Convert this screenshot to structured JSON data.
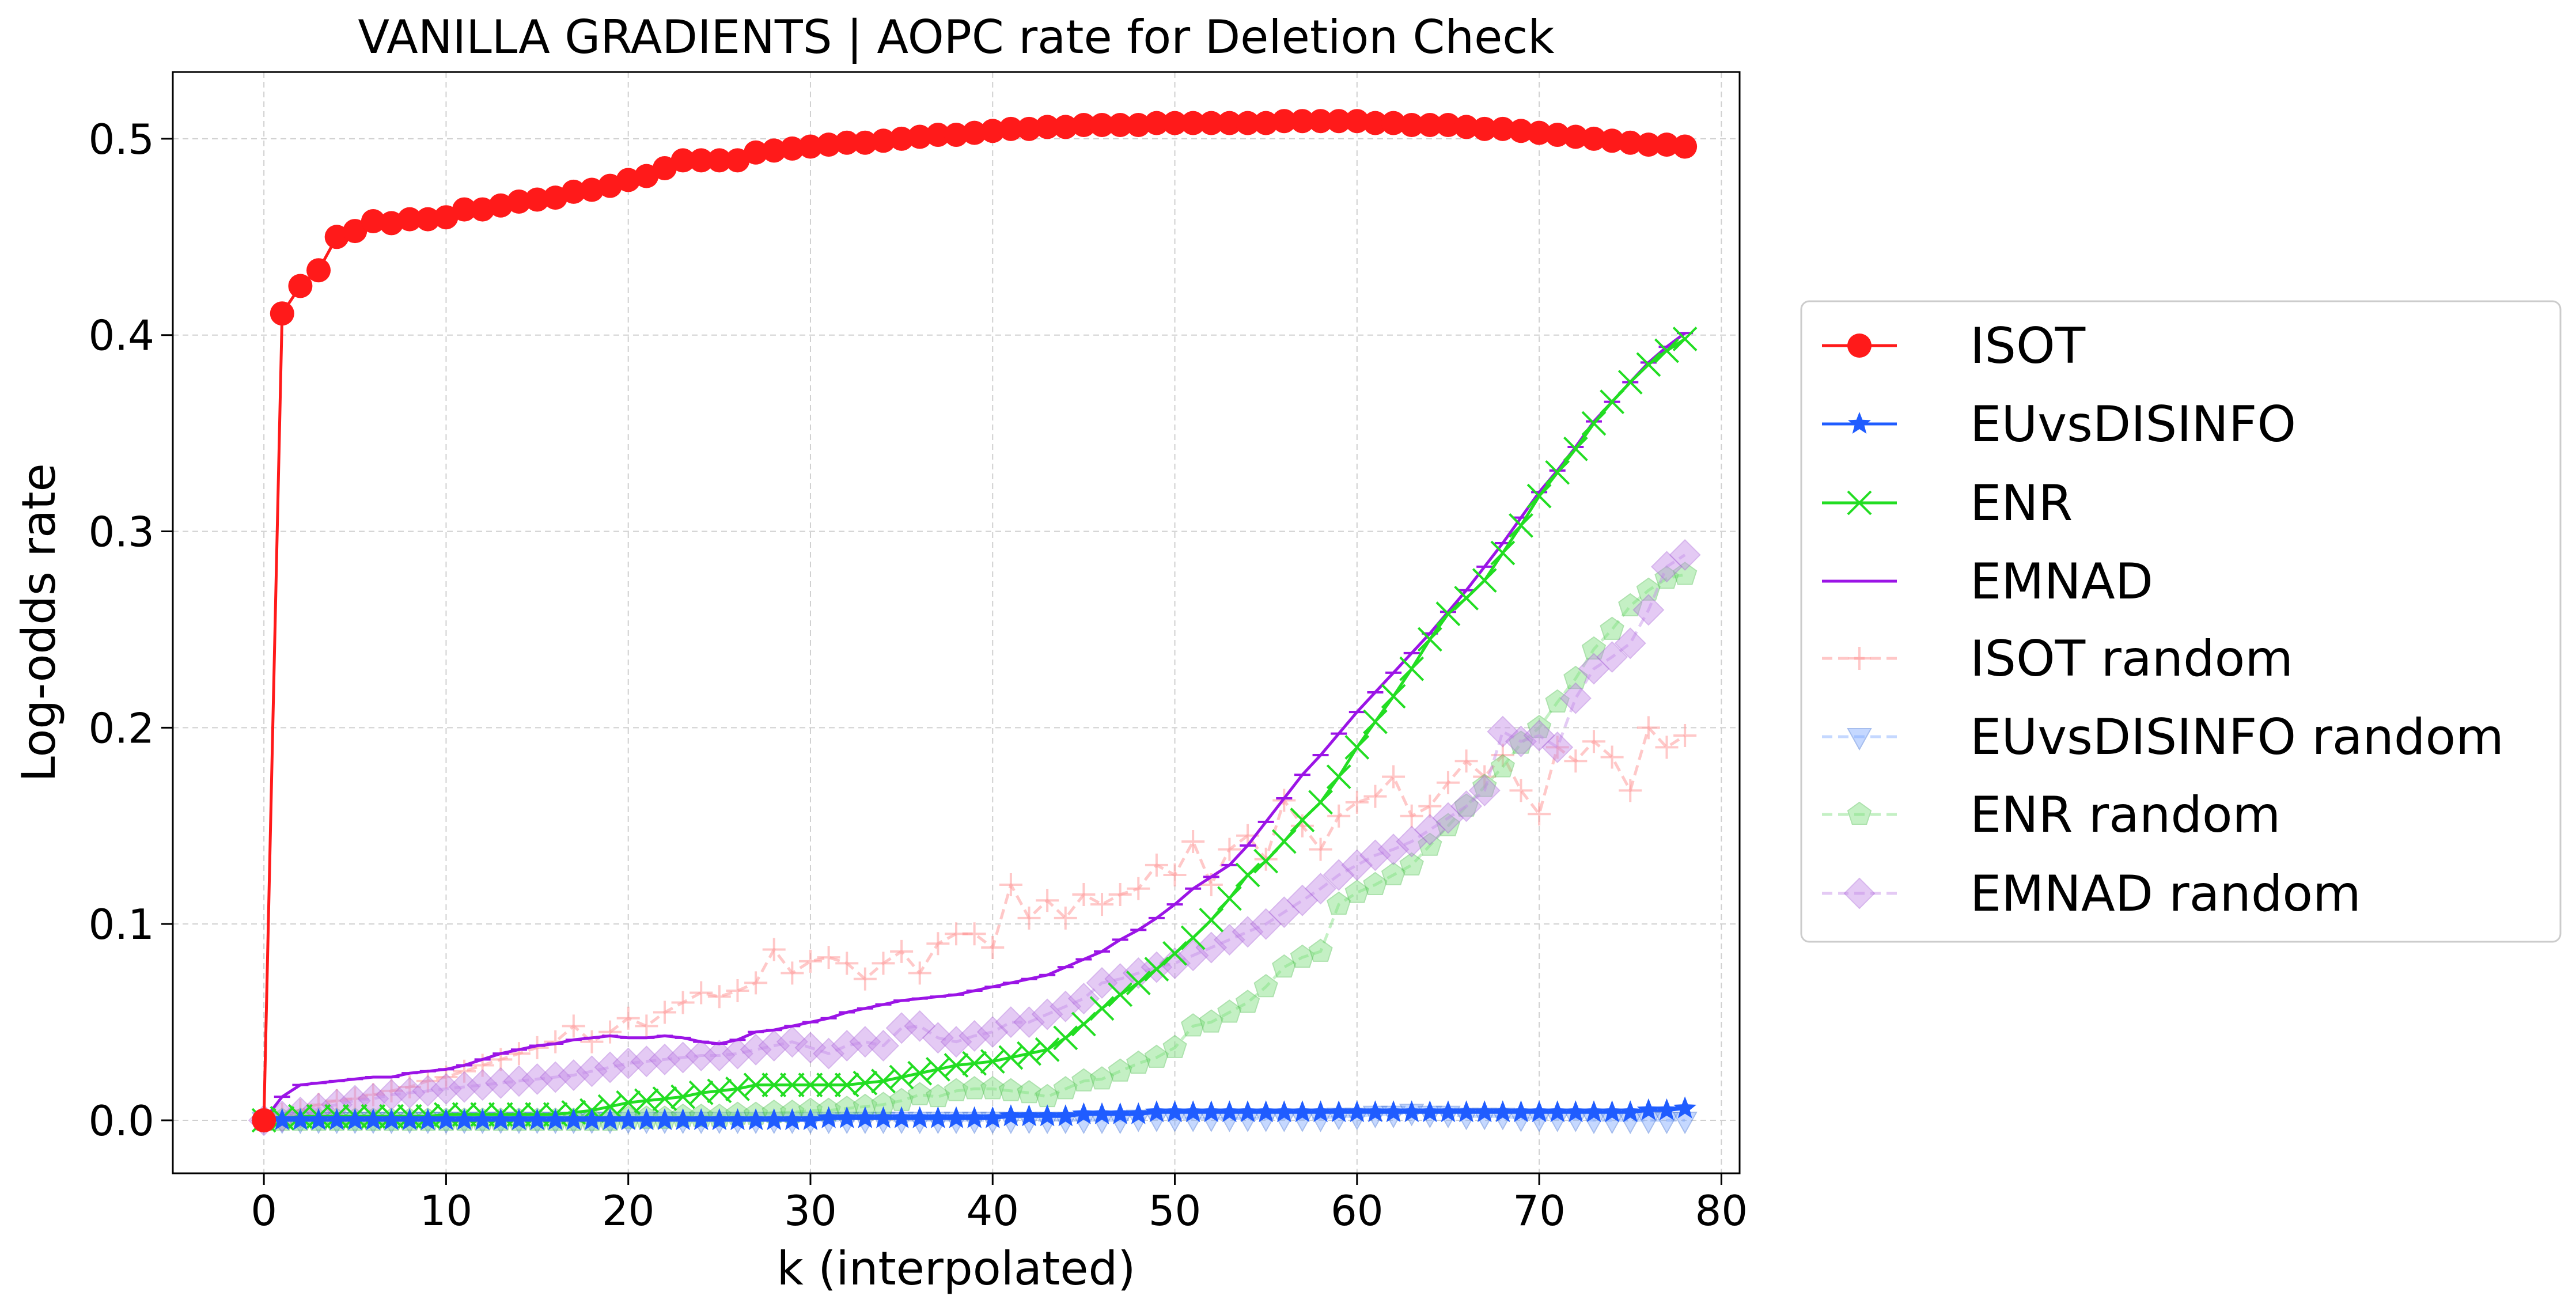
{
  "chart_data": {
    "type": "line",
    "title": "VANILLA GRADIENTS | AOPC rate for Deletion Check",
    "xlabel": "k (interpolated)",
    "ylabel": "Log-odds rate",
    "xlim": [
      -5,
      81
    ],
    "ylim": [
      -0.027,
      0.534
    ],
    "xticks": [
      "0",
      "10",
      "20",
      "30",
      "40",
      "50",
      "60",
      "70",
      "80"
    ],
    "yticks": [
      "0.0",
      "0.1",
      "0.2",
      "0.3",
      "0.4",
      "0.5"
    ],
    "grid": true,
    "legend_position": "right, outside plot",
    "x": [
      0,
      1,
      2,
      3,
      4,
      5,
      6,
      7,
      8,
      9,
      10,
      11,
      12,
      13,
      14,
      15,
      16,
      17,
      18,
      19,
      20,
      21,
      22,
      23,
      24,
      25,
      26,
      27,
      28,
      29,
      30,
      31,
      32,
      33,
      34,
      35,
      36,
      37,
      38,
      39,
      40,
      41,
      42,
      43,
      44,
      45,
      46,
      47,
      48,
      49,
      50,
      51,
      52,
      53,
      54,
      55,
      56,
      57,
      58,
      59,
      60,
      61,
      62,
      63,
      64,
      65,
      66,
      67,
      68,
      69,
      70,
      71,
      72,
      73,
      74,
      75,
      76,
      77,
      78
    ],
    "series": [
      {
        "name": "ISOT",
        "color": "#ff1a1a",
        "marker": "circle",
        "style": "solid",
        "alpha": 1.0,
        "values": [
          0.0,
          0.411,
          0.425,
          0.433,
          0.45,
          0.453,
          0.458,
          0.457,
          0.459,
          0.459,
          0.46,
          0.464,
          0.464,
          0.466,
          0.468,
          0.469,
          0.47,
          0.473,
          0.474,
          0.476,
          0.479,
          0.481,
          0.485,
          0.489,
          0.489,
          0.489,
          0.489,
          0.493,
          0.494,
          0.495,
          0.496,
          0.497,
          0.498,
          0.498,
          0.499,
          0.5,
          0.501,
          0.502,
          0.502,
          0.503,
          0.504,
          0.505,
          0.505,
          0.506,
          0.506,
          0.507,
          0.507,
          0.507,
          0.507,
          0.508,
          0.508,
          0.508,
          0.508,
          0.508,
          0.508,
          0.508,
          0.509,
          0.509,
          0.509,
          0.509,
          0.509,
          0.508,
          0.508,
          0.507,
          0.507,
          0.507,
          0.506,
          0.505,
          0.505,
          0.504,
          0.503,
          0.502,
          0.501,
          0.5,
          0.499,
          0.498,
          0.497,
          0.497,
          0.496
        ]
      },
      {
        "name": "EUvsDISINFO",
        "color": "#1f5cff",
        "marker": "star",
        "style": "solid",
        "alpha": 1.0,
        "values": [
          0.0,
          0.0,
          0.0,
          0.0,
          0.0,
          0.0,
          0.0,
          0.0,
          0.0,
          0.0,
          0.0,
          0.0,
          0.0,
          0.0,
          0.0,
          0.0,
          0.0,
          0.0,
          0.0,
          0.0,
          0.0,
          0.0,
          0.0,
          0.0,
          0.0,
          0.0,
          0.0,
          0.0,
          0.0,
          0.0,
          0.0,
          0.001,
          0.001,
          0.001,
          0.001,
          0.001,
          0.001,
          0.001,
          0.001,
          0.001,
          0.001,
          0.002,
          0.002,
          0.002,
          0.002,
          0.003,
          0.003,
          0.003,
          0.003,
          0.004,
          0.004,
          0.004,
          0.004,
          0.004,
          0.004,
          0.004,
          0.004,
          0.004,
          0.004,
          0.004,
          0.004,
          0.004,
          0.004,
          0.004,
          0.004,
          0.004,
          0.004,
          0.004,
          0.004,
          0.004,
          0.004,
          0.004,
          0.004,
          0.004,
          0.004,
          0.004,
          0.005,
          0.005,
          0.006
        ]
      },
      {
        "name": "ENR",
        "color": "#22dd22",
        "marker": "x",
        "style": "solid",
        "alpha": 1.0,
        "values": [
          0.0,
          0.001,
          0.002,
          0.002,
          0.002,
          0.002,
          0.002,
          0.002,
          0.002,
          0.002,
          0.003,
          0.003,
          0.003,
          0.003,
          0.003,
          0.003,
          0.003,
          0.004,
          0.005,
          0.007,
          0.009,
          0.01,
          0.011,
          0.012,
          0.014,
          0.015,
          0.016,
          0.018,
          0.018,
          0.018,
          0.018,
          0.018,
          0.018,
          0.019,
          0.02,
          0.022,
          0.024,
          0.026,
          0.028,
          0.029,
          0.03,
          0.032,
          0.034,
          0.036,
          0.042,
          0.049,
          0.057,
          0.064,
          0.07,
          0.077,
          0.085,
          0.093,
          0.102,
          0.113,
          0.125,
          0.132,
          0.142,
          0.153,
          0.162,
          0.175,
          0.19,
          0.203,
          0.216,
          0.23,
          0.245,
          0.258,
          0.266,
          0.275,
          0.289,
          0.303,
          0.318,
          0.33,
          0.342,
          0.355,
          0.366,
          0.376,
          0.385,
          0.392,
          0.398
        ]
      },
      {
        "name": "EMNAD",
        "color": "#9b14e6",
        "marker": "hline",
        "style": "solid",
        "alpha": 1.0,
        "values": [
          0.0,
          0.012,
          0.018,
          0.019,
          0.02,
          0.021,
          0.022,
          0.022,
          0.024,
          0.025,
          0.026,
          0.028,
          0.031,
          0.034,
          0.036,
          0.038,
          0.039,
          0.041,
          0.042,
          0.043,
          0.042,
          0.042,
          0.043,
          0.042,
          0.04,
          0.039,
          0.041,
          0.045,
          0.046,
          0.048,
          0.05,
          0.052,
          0.055,
          0.057,
          0.059,
          0.061,
          0.062,
          0.063,
          0.064,
          0.066,
          0.068,
          0.07,
          0.072,
          0.074,
          0.078,
          0.082,
          0.086,
          0.092,
          0.097,
          0.103,
          0.11,
          0.118,
          0.124,
          0.13,
          0.14,
          0.152,
          0.164,
          0.176,
          0.186,
          0.197,
          0.208,
          0.218,
          0.228,
          0.238,
          0.248,
          0.259,
          0.27,
          0.282,
          0.294,
          0.307,
          0.32,
          0.331,
          0.343,
          0.356,
          0.366,
          0.376,
          0.386,
          0.394,
          0.401
        ]
      },
      {
        "name": "ISOT random",
        "color": "#ff9a9a",
        "marker": "plus",
        "style": "dashed",
        "alpha": 0.55,
        "values": [
          0.0,
          0.003,
          0.005,
          0.008,
          0.01,
          0.011,
          0.013,
          0.015,
          0.017,
          0.02,
          0.022,
          0.025,
          0.028,
          0.031,
          0.034,
          0.037,
          0.04,
          0.048,
          0.04,
          0.045,
          0.052,
          0.048,
          0.055,
          0.06,
          0.065,
          0.063,
          0.066,
          0.07,
          0.087,
          0.075,
          0.081,
          0.083,
          0.08,
          0.072,
          0.08,
          0.086,
          0.075,
          0.09,
          0.095,
          0.095,
          0.088,
          0.12,
          0.103,
          0.112,
          0.103,
          0.115,
          0.11,
          0.115,
          0.118,
          0.13,
          0.125,
          0.142,
          0.12,
          0.138,
          0.145,
          0.133,
          0.163,
          0.15,
          0.138,
          0.155,
          0.162,
          0.165,
          0.175,
          0.155,
          0.16,
          0.172,
          0.183,
          0.175,
          0.186,
          0.168,
          0.156,
          0.19,
          0.183,
          0.193,
          0.185,
          0.168,
          0.2,
          0.19,
          0.196
        ]
      },
      {
        "name": "EUvsDISINFO random",
        "color": "#80aaff",
        "marker": "triangle-down",
        "style": "dashed",
        "alpha": 0.45,
        "values": [
          0.0,
          0.0,
          0.0,
          0.0,
          0.0,
          0.0,
          0.0,
          0.0,
          0.0,
          0.0,
          0.0,
          0.0,
          0.0,
          0.0,
          0.0,
          0.0,
          0.0,
          0.0,
          0.0,
          0.0,
          0.0,
          0.0,
          0.0,
          0.0,
          0.0,
          0.0,
          0.0,
          0.0,
          0.0,
          0.0,
          0.0,
          0.0,
          0.0,
          0.0,
          0.0,
          0.0,
          0.0,
          0.0,
          0.0,
          0.0,
          0.0,
          0.0,
          0.0,
          0.0,
          0.0,
          0.0,
          0.0,
          0.0,
          0.001,
          0.001,
          0.001,
          0.001,
          0.001,
          0.001,
          0.001,
          0.001,
          0.001,
          0.001,
          0.001,
          0.002,
          0.002,
          0.003,
          0.003,
          0.004,
          0.003,
          0.003,
          0.002,
          0.002,
          0.002,
          0.001,
          0.001,
          0.001,
          0.001,
          0.0,
          0.0,
          0.0,
          0.0,
          0.0,
          0.0
        ]
      },
      {
        "name": "ENR random",
        "color": "#7ee07e",
        "marker": "pentagon",
        "style": "dashed",
        "alpha": 0.45,
        "values": [
          0.0,
          0.0,
          0.0,
          0.0,
          0.0,
          0.0,
          0.0,
          0.0,
          0.0,
          0.0,
          0.0,
          0.0,
          0.0,
          0.0,
          0.0,
          0.0,
          0.0,
          0.0,
          0.0,
          0.0,
          0.001,
          0.001,
          0.001,
          0.002,
          0.002,
          0.002,
          0.003,
          0.003,
          0.004,
          0.004,
          0.005,
          0.005,
          0.006,
          0.007,
          0.008,
          0.01,
          0.013,
          0.012,
          0.015,
          0.016,
          0.016,
          0.015,
          0.014,
          0.012,
          0.016,
          0.02,
          0.021,
          0.025,
          0.029,
          0.032,
          0.037,
          0.048,
          0.05,
          0.055,
          0.06,
          0.068,
          0.078,
          0.083,
          0.086,
          0.11,
          0.116,
          0.12,
          0.125,
          0.13,
          0.14,
          0.15,
          0.16,
          0.17,
          0.18,
          0.192,
          0.2,
          0.213,
          0.225,
          0.24,
          0.25,
          0.262,
          0.27,
          0.276,
          0.278
        ]
      },
      {
        "name": "EMNAD random",
        "color": "#c48be8",
        "marker": "diamond",
        "style": "dashed",
        "alpha": 0.45,
        "values": [
          0.0,
          0.002,
          0.004,
          0.006,
          0.008,
          0.01,
          0.011,
          0.013,
          0.014,
          0.015,
          0.016,
          0.017,
          0.018,
          0.019,
          0.02,
          0.021,
          0.022,
          0.023,
          0.025,
          0.027,
          0.029,
          0.03,
          0.031,
          0.032,
          0.033,
          0.033,
          0.034,
          0.036,
          0.038,
          0.04,
          0.037,
          0.034,
          0.038,
          0.04,
          0.038,
          0.047,
          0.048,
          0.042,
          0.04,
          0.043,
          0.045,
          0.05,
          0.05,
          0.054,
          0.058,
          0.062,
          0.07,
          0.072,
          0.075,
          0.078,
          0.08,
          0.084,
          0.088,
          0.092,
          0.096,
          0.1,
          0.106,
          0.112,
          0.118,
          0.125,
          0.13,
          0.135,
          0.138,
          0.142,
          0.148,
          0.154,
          0.16,
          0.168,
          0.198,
          0.193,
          0.196,
          0.19,
          0.215,
          0.23,
          0.236,
          0.243,
          0.26,
          0.282,
          0.288
        ]
      }
    ]
  }
}
